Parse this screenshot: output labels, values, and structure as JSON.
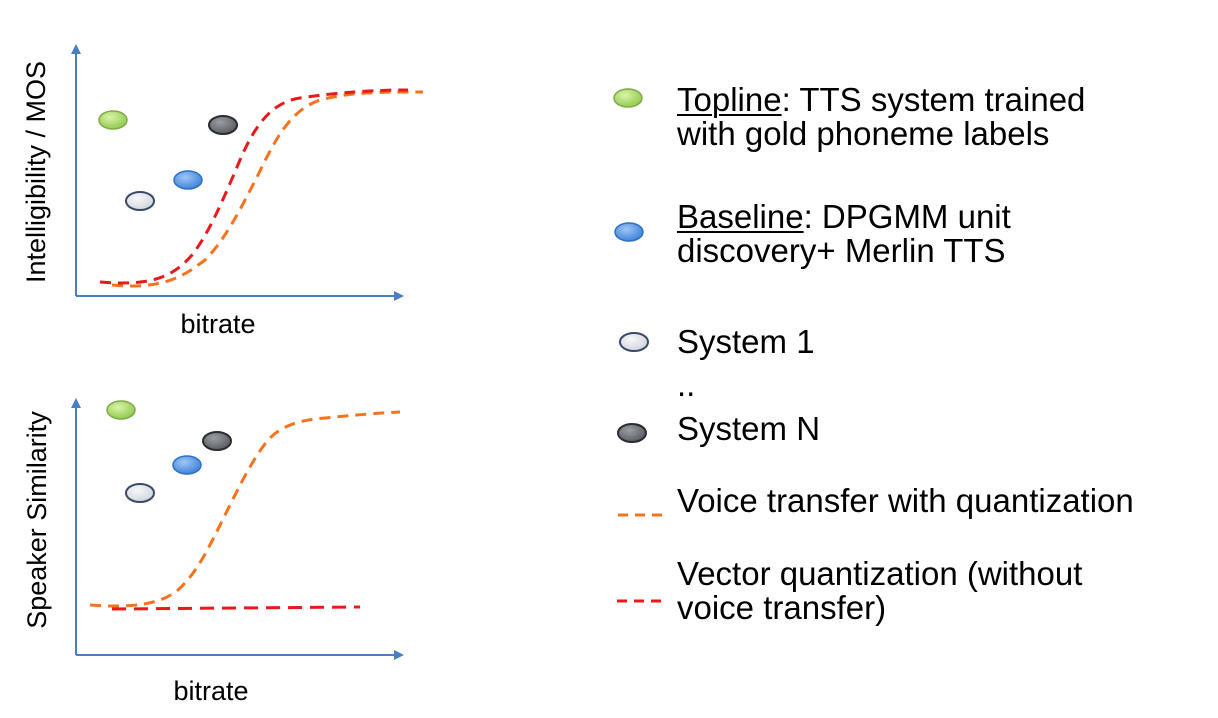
{
  "panels": {
    "top": {
      "ylabel": "Intelligibility / MOS",
      "xlabel": "bitrate"
    },
    "bottom": {
      "ylabel": "Speaker Similarity",
      "xlabel": "bitrate"
    }
  },
  "legend": {
    "topline": {
      "name": "Topline",
      "line1_rest": ": TTS system trained",
      "line2": "with gold phoneme labels",
      "color": "#9ed45a"
    },
    "baseline": {
      "name": "Baseline",
      "line1_rest": ": DPGMM unit",
      "line2": "discovery+ Merlin TTS",
      "color": "#4f8fe0"
    },
    "system1": {
      "label": "System 1",
      "color": "#dde0e6"
    },
    "ellipsis": "..",
    "systemN": {
      "label": "System N",
      "color": "#6b6e73"
    },
    "voice_transfer": {
      "label": "Voice transfer with quantization",
      "color": "#f5731e"
    },
    "vector_quant": {
      "line1": "Vector quantization (without",
      "line2": "voice transfer)",
      "color": "#e8191a"
    }
  },
  "colors": {
    "axis": "#4a7ec3"
  }
}
